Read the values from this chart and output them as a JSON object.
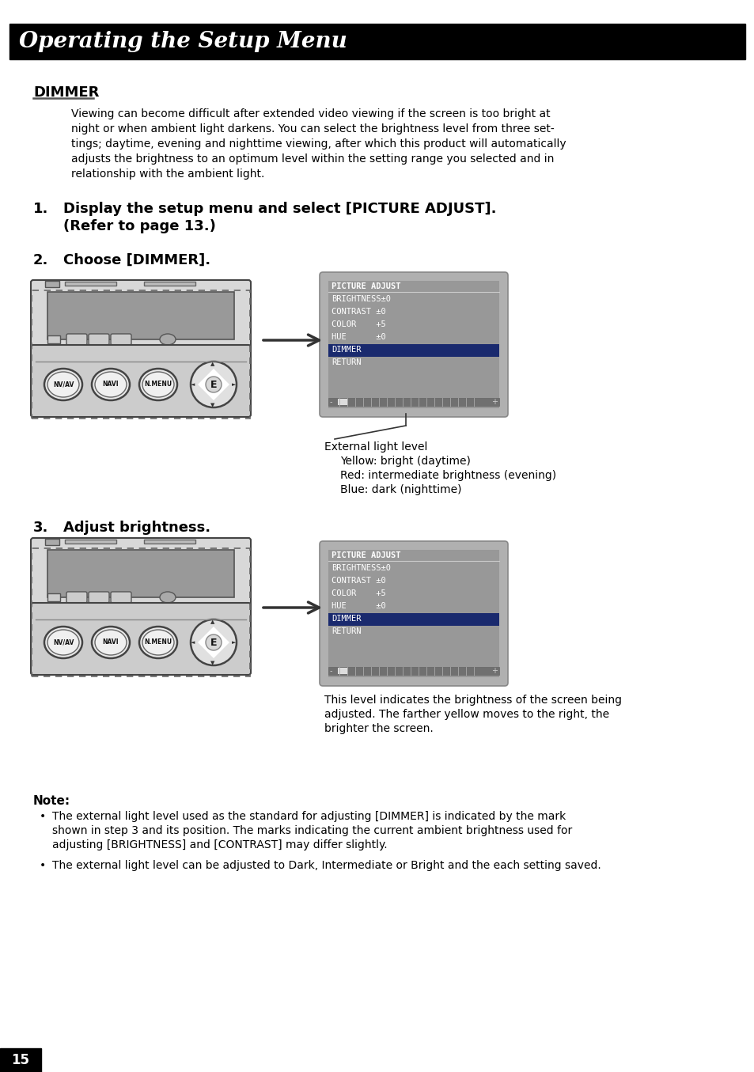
{
  "title": "Operating the Setup Menu",
  "page_bg": "#ffffff",
  "section_heading": "DIMMER",
  "intro_lines": [
    "Viewing can become difficult after extended video viewing if the screen is too bright at",
    "night or when ambient light darkens. You can select the brightness level from three set-",
    "tings; daytime, evening and nighttime viewing, after which this product will automatically",
    "adjusts the brightness to an optimum level within the setting range you selected and in",
    "relationship with the ambient light."
  ],
  "step1_line1": "Display the setup menu and select [PICTURE ADJUST].",
  "step1_line2": "(Refer to page 13.)",
  "step2_text": "Choose [DIMMER].",
  "step3_text": "Adjust brightness.",
  "external_light_label": "External light level",
  "external_light_items": [
    "Yellow: bright (daytime)",
    "Red: intermediate brightness (evening)",
    "Blue: dark (nighttime)"
  ],
  "step3_desc_lines": [
    "This level indicates the brightness of the screen being",
    "adjusted. The farther yellow moves to the right, the",
    "brighter the screen."
  ],
  "note_heading": "Note:",
  "note1_lines": [
    "The external light level used as the standard for adjusting [DIMMER] is indicated by the mark",
    "shown in step 3 and its position. The marks indicating the current ambient brightness used for",
    "adjusting [BRIGHTNESS] and [CONTRAST] may differ slightly."
  ],
  "note2": "The external light level can be adjusted to Dark, Intermediate or Bright and the each setting saved.",
  "page_number": "15",
  "screen1_lines": [
    "PICTURE ADJUST",
    "BRIGHTNESS±0",
    "CONTRAST ±0",
    "COLOR    +5",
    "HUE      ±0",
    "DIMMER",
    "RETURN"
  ],
  "screen2_lines": [
    "PICTURE ADJUST",
    "BRIGHTNESS±0",
    "CONTRAST ±0",
    "COLOR    +5",
    "HUE      ±0",
    "DIMMER",
    "RETURN"
  ]
}
